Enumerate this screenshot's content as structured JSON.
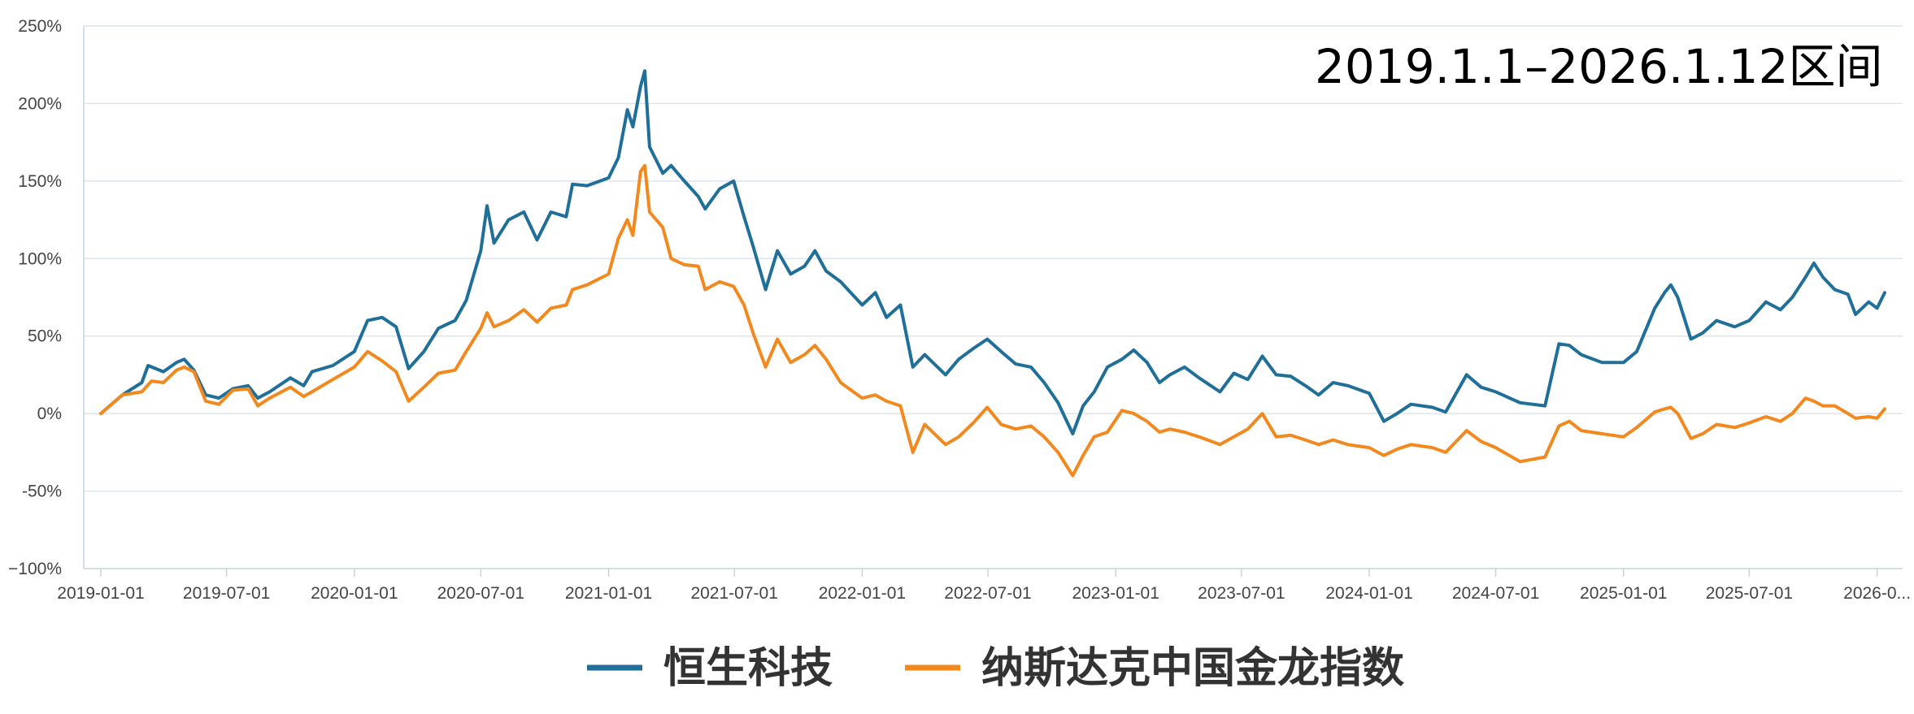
{
  "chart_data": {
    "type": "line",
    "annotation": "2019.1.1–2026.1.12区间",
    "ylim": [
      -100,
      250
    ],
    "yticks": [
      -100,
      -50,
      0,
      50,
      100,
      150,
      200,
      250
    ],
    "yticklabels": [
      "−100%",
      "-50%",
      "0%",
      "50%",
      "100%",
      "150%",
      "200%",
      "250%"
    ],
    "xlim": [
      "2019-01-01",
      "2026-01-12"
    ],
    "xticks": [
      "2019-01-01",
      "2019-07-01",
      "2020-01-01",
      "2020-07-01",
      "2021-01-01",
      "2021-07-01",
      "2022-01-01",
      "2022-07-01",
      "2023-01-01",
      "2023-07-01",
      "2024-01-01",
      "2024-07-01",
      "2025-01-01",
      "2025-07-01",
      "2026-01-01"
    ],
    "xticklabels": [
      "2019-01-01",
      "2019-07-01",
      "2020-01-01",
      "2020-07-01",
      "2021-01-01",
      "2021-07-01",
      "2022-01-01",
      "2022-07-01",
      "2023-01-01",
      "2023-07-01",
      "2024-01-01",
      "2024-07-01",
      "2025-01-01",
      "2025-07-01",
      "2026-0..."
    ],
    "grid": true,
    "legend_position": "bottom-center",
    "series": [
      {
        "name": "恒生科技",
        "color": "#1f6f99",
        "points": [
          [
            "2019-01-01",
            0
          ],
          [
            "2019-02-01",
            12
          ],
          [
            "2019-03-01",
            20
          ],
          [
            "2019-03-10",
            31
          ],
          [
            "2019-04-01",
            27
          ],
          [
            "2019-04-20",
            33
          ],
          [
            "2019-05-01",
            35
          ],
          [
            "2019-05-15",
            28
          ],
          [
            "2019-06-01",
            12
          ],
          [
            "2019-06-20",
            10
          ],
          [
            "2019-07-10",
            16
          ],
          [
            "2019-08-01",
            18
          ],
          [
            "2019-08-15",
            10
          ],
          [
            "2019-09-01",
            14
          ],
          [
            "2019-10-01",
            23
          ],
          [
            "2019-10-20",
            18
          ],
          [
            "2019-11-01",
            27
          ],
          [
            "2019-12-01",
            31
          ],
          [
            "2020-01-01",
            40
          ],
          [
            "2020-01-20",
            60
          ],
          [
            "2020-02-10",
            62
          ],
          [
            "2020-03-01",
            56
          ],
          [
            "2020-03-19",
            29
          ],
          [
            "2020-04-10",
            40
          ],
          [
            "2020-05-01",
            55
          ],
          [
            "2020-05-25",
            60
          ],
          [
            "2020-06-10",
            73
          ],
          [
            "2020-07-01",
            105
          ],
          [
            "2020-07-10",
            134
          ],
          [
            "2020-07-20",
            110
          ],
          [
            "2020-08-10",
            125
          ],
          [
            "2020-09-01",
            130
          ],
          [
            "2020-09-20",
            112
          ],
          [
            "2020-10-10",
            130
          ],
          [
            "2020-11-01",
            127
          ],
          [
            "2020-11-10",
            148
          ],
          [
            "2020-12-01",
            147
          ],
          [
            "2021-01-01",
            152
          ],
          [
            "2021-01-15",
            165
          ],
          [
            "2021-01-28",
            196
          ],
          [
            "2021-02-05",
            185
          ],
          [
            "2021-02-16",
            211
          ],
          [
            "2021-02-22",
            221
          ],
          [
            "2021-03-01",
            172
          ],
          [
            "2021-03-20",
            155
          ],
          [
            "2021-04-01",
            160
          ],
          [
            "2021-04-20",
            150
          ],
          [
            "2021-05-10",
            140
          ],
          [
            "2021-05-20",
            132
          ],
          [
            "2021-06-10",
            145
          ],
          [
            "2021-06-30",
            150
          ],
          [
            "2021-07-15",
            127
          ],
          [
            "2021-07-28",
            108
          ],
          [
            "2021-08-15",
            80
          ],
          [
            "2021-09-01",
            105
          ],
          [
            "2021-09-20",
            90
          ],
          [
            "2021-10-10",
            95
          ],
          [
            "2021-10-25",
            105
          ],
          [
            "2021-11-10",
            92
          ],
          [
            "2021-12-01",
            85
          ],
          [
            "2022-01-01",
            70
          ],
          [
            "2022-01-20",
            78
          ],
          [
            "2022-02-05",
            62
          ],
          [
            "2022-02-25",
            70
          ],
          [
            "2022-03-15",
            30
          ],
          [
            "2022-04-01",
            38
          ],
          [
            "2022-05-01",
            25
          ],
          [
            "2022-05-20",
            35
          ],
          [
            "2022-06-10",
            42
          ],
          [
            "2022-06-30",
            48
          ],
          [
            "2022-07-20",
            40
          ],
          [
            "2022-08-10",
            32
          ],
          [
            "2022-09-01",
            30
          ],
          [
            "2022-09-20",
            20
          ],
          [
            "2022-10-10",
            7
          ],
          [
            "2022-10-31",
            -13
          ],
          [
            "2022-11-15",
            5
          ],
          [
            "2022-12-01",
            14
          ],
          [
            "2022-12-20",
            30
          ],
          [
            "2023-01-10",
            35
          ],
          [
            "2023-01-27",
            41
          ],
          [
            "2023-02-15",
            33
          ],
          [
            "2023-03-05",
            20
          ],
          [
            "2023-03-20",
            25
          ],
          [
            "2023-04-10",
            30
          ],
          [
            "2023-05-01",
            23
          ],
          [
            "2023-05-31",
            14
          ],
          [
            "2023-06-20",
            26
          ],
          [
            "2023-07-10",
            22
          ],
          [
            "2023-07-31",
            37
          ],
          [
            "2023-08-20",
            25
          ],
          [
            "2023-09-10",
            24
          ],
          [
            "2023-10-01",
            18
          ],
          [
            "2023-10-20",
            12
          ],
          [
            "2023-11-10",
            20
          ],
          [
            "2023-12-01",
            18
          ],
          [
            "2024-01-01",
            13
          ],
          [
            "2024-01-22",
            -5
          ],
          [
            "2024-02-10",
            0
          ],
          [
            "2024-03-01",
            6
          ],
          [
            "2024-04-01",
            4
          ],
          [
            "2024-04-20",
            1
          ],
          [
            "2024-05-20",
            25
          ],
          [
            "2024-06-10",
            17
          ],
          [
            "2024-07-01",
            14
          ],
          [
            "2024-08-05",
            7
          ],
          [
            "2024-09-10",
            5
          ],
          [
            "2024-09-30",
            45
          ],
          [
            "2024-10-15",
            44
          ],
          [
            "2024-11-01",
            38
          ],
          [
            "2024-12-01",
            33
          ],
          [
            "2025-01-01",
            33
          ],
          [
            "2025-01-20",
            40
          ],
          [
            "2025-02-15",
            68
          ],
          [
            "2025-03-01",
            78
          ],
          [
            "2025-03-10",
            83
          ],
          [
            "2025-03-20",
            75
          ],
          [
            "2025-04-08",
            48
          ],
          [
            "2025-04-25",
            52
          ],
          [
            "2025-05-15",
            60
          ],
          [
            "2025-06-10",
            56
          ],
          [
            "2025-07-01",
            60
          ],
          [
            "2025-07-25",
            72
          ],
          [
            "2025-08-15",
            67
          ],
          [
            "2025-09-01",
            75
          ],
          [
            "2025-09-20",
            88
          ],
          [
            "2025-10-02",
            97
          ],
          [
            "2025-10-15",
            88
          ],
          [
            "2025-11-01",
            80
          ],
          [
            "2025-11-20",
            77
          ],
          [
            "2025-12-01",
            64
          ],
          [
            "2025-12-20",
            72
          ],
          [
            "2026-01-01",
            68
          ],
          [
            "2026-01-12",
            78
          ]
        ]
      },
      {
        "name": "纳斯达克中国金龙指数",
        "color": "#f2891f",
        "points": [
          [
            "2019-01-01",
            0
          ],
          [
            "2019-02-01",
            12
          ],
          [
            "2019-03-01",
            14
          ],
          [
            "2019-03-15",
            21
          ],
          [
            "2019-04-01",
            20
          ],
          [
            "2019-04-20",
            28
          ],
          [
            "2019-05-01",
            30
          ],
          [
            "2019-05-15",
            27
          ],
          [
            "2019-06-01",
            8
          ],
          [
            "2019-06-20",
            6
          ],
          [
            "2019-07-10",
            15
          ],
          [
            "2019-08-01",
            16
          ],
          [
            "2019-08-15",
            5
          ],
          [
            "2019-09-01",
            10
          ],
          [
            "2019-10-01",
            17
          ],
          [
            "2019-10-20",
            11
          ],
          [
            "2019-11-01",
            14
          ],
          [
            "2019-12-01",
            22
          ],
          [
            "2020-01-01",
            30
          ],
          [
            "2020-01-20",
            40
          ],
          [
            "2020-02-10",
            34
          ],
          [
            "2020-03-01",
            27
          ],
          [
            "2020-03-19",
            8
          ],
          [
            "2020-04-10",
            17
          ],
          [
            "2020-05-01",
            26
          ],
          [
            "2020-05-25",
            28
          ],
          [
            "2020-06-10",
            40
          ],
          [
            "2020-07-01",
            55
          ],
          [
            "2020-07-10",
            65
          ],
          [
            "2020-07-20",
            56
          ],
          [
            "2020-08-10",
            60
          ],
          [
            "2020-09-01",
            67
          ],
          [
            "2020-09-20",
            59
          ],
          [
            "2020-10-10",
            68
          ],
          [
            "2020-11-01",
            70
          ],
          [
            "2020-11-10",
            80
          ],
          [
            "2020-12-01",
            83
          ],
          [
            "2021-01-01",
            90
          ],
          [
            "2021-01-15",
            113
          ],
          [
            "2021-01-28",
            125
          ],
          [
            "2021-02-05",
            115
          ],
          [
            "2021-02-16",
            156
          ],
          [
            "2021-02-22",
            160
          ],
          [
            "2021-03-01",
            130
          ],
          [
            "2021-03-20",
            120
          ],
          [
            "2021-04-01",
            100
          ],
          [
            "2021-04-20",
            96
          ],
          [
            "2021-05-10",
            95
          ],
          [
            "2021-05-20",
            80
          ],
          [
            "2021-06-10",
            85
          ],
          [
            "2021-06-30",
            82
          ],
          [
            "2021-07-15",
            70
          ],
          [
            "2021-07-28",
            52
          ],
          [
            "2021-08-15",
            30
          ],
          [
            "2021-09-01",
            48
          ],
          [
            "2021-09-20",
            33
          ],
          [
            "2021-10-10",
            38
          ],
          [
            "2021-10-25",
            44
          ],
          [
            "2021-11-10",
            35
          ],
          [
            "2021-12-01",
            20
          ],
          [
            "2022-01-01",
            10
          ],
          [
            "2022-01-20",
            12
          ],
          [
            "2022-02-05",
            8
          ],
          [
            "2022-02-25",
            5
          ],
          [
            "2022-03-15",
            -25
          ],
          [
            "2022-04-01",
            -7
          ],
          [
            "2022-05-01",
            -20
          ],
          [
            "2022-05-20",
            -15
          ],
          [
            "2022-06-10",
            -6
          ],
          [
            "2022-06-30",
            4
          ],
          [
            "2022-07-20",
            -7
          ],
          [
            "2022-08-10",
            -10
          ],
          [
            "2022-09-01",
            -8
          ],
          [
            "2022-09-20",
            -15
          ],
          [
            "2022-10-10",
            -25
          ],
          [
            "2022-10-31",
            -40
          ],
          [
            "2022-11-15",
            -27
          ],
          [
            "2022-12-01",
            -15
          ],
          [
            "2022-12-20",
            -12
          ],
          [
            "2023-01-10",
            2
          ],
          [
            "2023-01-27",
            0
          ],
          [
            "2023-02-15",
            -5
          ],
          [
            "2023-03-05",
            -12
          ],
          [
            "2023-03-20",
            -10
          ],
          [
            "2023-04-10",
            -12
          ],
          [
            "2023-05-01",
            -15
          ],
          [
            "2023-05-31",
            -20
          ],
          [
            "2023-06-20",
            -15
          ],
          [
            "2023-07-10",
            -10
          ],
          [
            "2023-07-31",
            0
          ],
          [
            "2023-08-20",
            -15
          ],
          [
            "2023-09-10",
            -14
          ],
          [
            "2023-10-01",
            -17
          ],
          [
            "2023-10-20",
            -20
          ],
          [
            "2023-11-10",
            -17
          ],
          [
            "2023-12-01",
            -20
          ],
          [
            "2024-01-01",
            -22
          ],
          [
            "2024-01-22",
            -27
          ],
          [
            "2024-02-10",
            -23
          ],
          [
            "2024-03-01",
            -20
          ],
          [
            "2024-04-01",
            -22
          ],
          [
            "2024-04-20",
            -25
          ],
          [
            "2024-05-20",
            -11
          ],
          [
            "2024-06-10",
            -18
          ],
          [
            "2024-07-01",
            -22
          ],
          [
            "2024-08-05",
            -31
          ],
          [
            "2024-09-10",
            -28
          ],
          [
            "2024-09-30",
            -8
          ],
          [
            "2024-10-15",
            -5
          ],
          [
            "2024-11-01",
            -11
          ],
          [
            "2024-12-01",
            -13
          ],
          [
            "2025-01-01",
            -15
          ],
          [
            "2025-01-20",
            -9
          ],
          [
            "2025-02-15",
            1
          ],
          [
            "2025-03-01",
            3
          ],
          [
            "2025-03-10",
            4
          ],
          [
            "2025-03-20",
            0
          ],
          [
            "2025-04-08",
            -16
          ],
          [
            "2025-04-25",
            -13
          ],
          [
            "2025-05-15",
            -7
          ],
          [
            "2025-06-10",
            -9
          ],
          [
            "2025-07-01",
            -6
          ],
          [
            "2025-07-25",
            -2
          ],
          [
            "2025-08-15",
            -5
          ],
          [
            "2025-09-01",
            0
          ],
          [
            "2025-09-20",
            10
          ],
          [
            "2025-10-02",
            8
          ],
          [
            "2025-10-15",
            5
          ],
          [
            "2025-11-01",
            5
          ],
          [
            "2025-11-20",
            0
          ],
          [
            "2025-12-01",
            -3
          ],
          [
            "2025-12-20",
            -2
          ],
          [
            "2026-01-01",
            -3
          ],
          [
            "2026-01-12",
            3
          ]
        ]
      }
    ]
  }
}
